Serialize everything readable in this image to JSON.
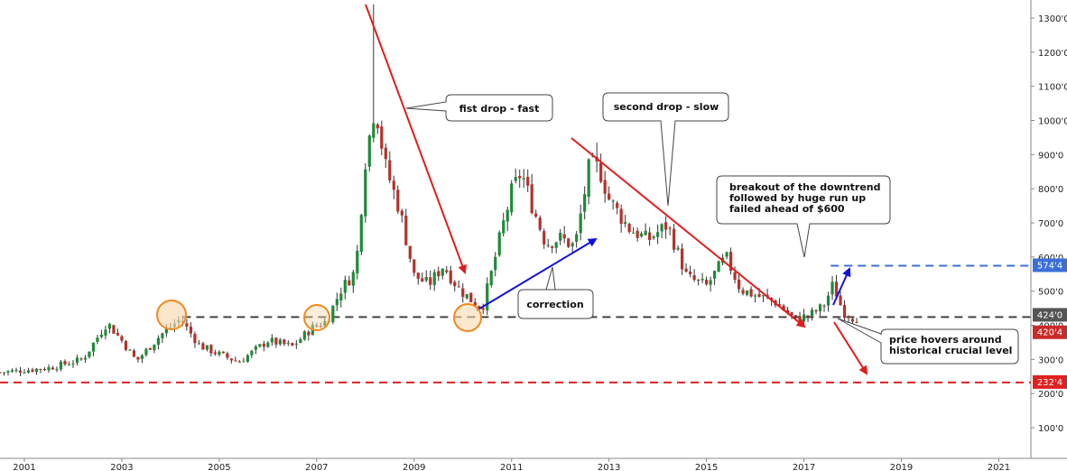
{
  "chart_data": {
    "type": "candlestick",
    "title": "",
    "xlabel": "",
    "ylabel": "",
    "x_ticks": [
      "2001",
      "2003",
      "2005",
      "2007",
      "2009",
      "2011",
      "2013",
      "2015",
      "2017",
      "2019",
      "2021"
    ],
    "y_ticks": [
      "100'0",
      "200'0",
      "300'0",
      "400'0",
      "500'0",
      "600'0",
      "700'0",
      "800'0",
      "900'0",
      "1000'0",
      "1100'0",
      "1200'0",
      "1300'0"
    ],
    "y_tick_values": [
      100,
      200,
      300,
      400,
      500,
      600,
      700,
      800,
      900,
      1000,
      1100,
      1200,
      1300
    ],
    "xlim": [
      2000.5,
      2022.4
    ],
    "ylim": [
      0,
      1350
    ],
    "grid": false,
    "colors": {
      "up": "#1f8a3a",
      "down": "#b5312a",
      "wick": "#333333"
    },
    "price_tags": [
      {
        "label": "574'4",
        "value": 574.5,
        "color": "#3b6fd6"
      },
      {
        "label": "424'0",
        "value": 424,
        "color": "#555555"
      },
      {
        "label": "420'4",
        "value": 420.5,
        "color": "#cc2a2a"
      },
      {
        "label": "232'4",
        "value": 232.5,
        "color": "#e02020"
      }
    ],
    "levels": [
      {
        "value": 574.5,
        "from": 2017.55,
        "to": 2022.4,
        "color": "#3b6fd6",
        "style": "dashed"
      },
      {
        "value": 424,
        "from": 2004.25,
        "to": 2022.4,
        "color": "#444444",
        "style": "dashed"
      },
      {
        "value": 232.5,
        "from": 2000.5,
        "to": 2022.4,
        "color": "#e02020",
        "style": "dashed"
      }
    ],
    "annotations": [
      {
        "text": "fist drop - fast"
      },
      {
        "text": "second drop - slow"
      },
      {
        "text": "correction"
      },
      {
        "text": "breakout of the downtrend\nfollowed by huge run up\nfailed ahead of $600"
      },
      {
        "text": "price hovers around\nhistorical crucial level"
      }
    ],
    "anchors": [
      {
        "t": 2000.5,
        "p": 262
      },
      {
        "t": 2001.5,
        "p": 275
      },
      {
        "t": 2002.2,
        "p": 300
      },
      {
        "t": 2002.7,
        "p": 408
      },
      {
        "t": 2003.0,
        "p": 355
      },
      {
        "t": 2003.3,
        "p": 295
      },
      {
        "t": 2003.8,
        "p": 372
      },
      {
        "t": 2004.2,
        "p": 418
      },
      {
        "t": 2004.6,
        "p": 340
      },
      {
        "t": 2005.0,
        "p": 315
      },
      {
        "t": 2005.4,
        "p": 292
      },
      {
        "t": 2006.0,
        "p": 355
      },
      {
        "t": 2006.5,
        "p": 338
      },
      {
        "t": 2006.9,
        "p": 392
      },
      {
        "t": 2007.2,
        "p": 412
      },
      {
        "t": 2007.5,
        "p": 505
      },
      {
        "t": 2007.8,
        "p": 560
      },
      {
        "t": 2008.0,
        "p": 885
      },
      {
        "t": 2008.2,
        "p": 1050
      },
      {
        "t": 2008.4,
        "p": 870
      },
      {
        "t": 2008.7,
        "p": 740
      },
      {
        "t": 2009.0,
        "p": 545
      },
      {
        "t": 2009.3,
        "p": 520
      },
      {
        "t": 2009.6,
        "p": 575
      },
      {
        "t": 2009.9,
        "p": 510
      },
      {
        "t": 2010.2,
        "p": 470
      },
      {
        "t": 2010.4,
        "p": 452
      },
      {
        "t": 2010.6,
        "p": 560
      },
      {
        "t": 2010.8,
        "p": 680
      },
      {
        "t": 2011.0,
        "p": 790
      },
      {
        "t": 2011.2,
        "p": 850
      },
      {
        "t": 2011.4,
        "p": 760
      },
      {
        "t": 2011.7,
        "p": 640
      },
      {
        "t": 2012.0,
        "p": 655
      },
      {
        "t": 2012.3,
        "p": 630
      },
      {
        "t": 2012.6,
        "p": 870
      },
      {
        "t": 2012.8,
        "p": 860
      },
      {
        "t": 2013.0,
        "p": 770
      },
      {
        "t": 2013.4,
        "p": 685
      },
      {
        "t": 2013.8,
        "p": 650
      },
      {
        "t": 2014.2,
        "p": 695
      },
      {
        "t": 2014.6,
        "p": 540
      },
      {
        "t": 2015.0,
        "p": 515
      },
      {
        "t": 2015.4,
        "p": 600
      },
      {
        "t": 2015.7,
        "p": 505
      },
      {
        "t": 2016.0,
        "p": 488
      },
      {
        "t": 2016.4,
        "p": 470
      },
      {
        "t": 2016.8,
        "p": 418
      },
      {
        "t": 2017.1,
        "p": 428
      },
      {
        "t": 2017.4,
        "p": 455
      },
      {
        "t": 2017.6,
        "p": 520
      },
      {
        "t": 2017.8,
        "p": 440
      },
      {
        "t": 2018.0,
        "p": 424
      },
      {
        "t": 2018.1,
        "p": 421
      }
    ]
  }
}
